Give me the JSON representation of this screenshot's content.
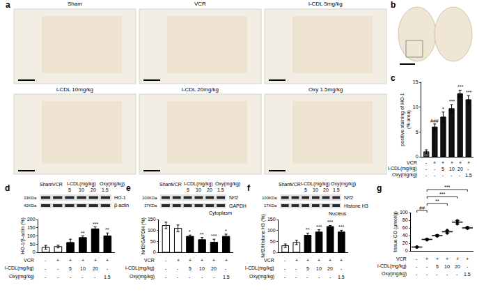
{
  "panel_labels": [
    "a",
    "b",
    "c",
    "d",
    "e",
    "f",
    "g"
  ],
  "micrographs": {
    "panel": "a",
    "titles": [
      "Sham",
      "VCR",
      "l-CDL 5mg/kg",
      "l-CDL 10mg/kg",
      "l-CDL 20mg/kg",
      "Oxy 1.5mg/kg"
    ]
  },
  "blots": [
    {
      "panel": "d",
      "header": [
        "Sham",
        "VCR",
        "l-CDL(mg/kg)",
        "Oxy(mg/kg)"
      ],
      "doses": [
        "5",
        "10",
        "20",
        "1.5"
      ],
      "rows": [
        {
          "size": "33KDa",
          "name": "HO-1"
        },
        {
          "size": "42KDa",
          "name": "β-actin"
        }
      ]
    },
    {
      "panel": "e",
      "header": [
        "Sham",
        "VCR",
        "l-CDL(mg/kg)",
        "Oxy(mg/kg)"
      ],
      "doses": [
        "5",
        "10",
        "20",
        "1.5"
      ],
      "rows": [
        {
          "size": "100KDa",
          "name": "Nrf2"
        },
        {
          "size": "37KDa",
          "name": "GAPDH"
        }
      ],
      "caption": "Cytoplasm"
    },
    {
      "panel": "f",
      "header": [
        "Sham",
        "VCR",
        "l-CDL(mg/kg)",
        "Oxy(mg/kg)"
      ],
      "doses": [
        "5",
        "10",
        "20",
        "1.5"
      ],
      "rows": [
        {
          "size": "100KDa",
          "name": "Nrf2"
        },
        {
          "size": "17KDa",
          "name": "Histone H3"
        }
      ],
      "caption": "Nucleus"
    }
  ],
  "chart_data": [
    {
      "panel": "c",
      "type": "bar",
      "categories": [
        null,
        null,
        null,
        null,
        null,
        null
      ],
      "values": [
        1,
        6,
        8,
        9.7,
        12.7,
        11.5
      ],
      "errors": [
        0.4,
        0.6,
        1,
        0.8,
        0.7,
        0.8
      ],
      "colors": [
        "#555555",
        "#111111",
        "#111111",
        "#111111",
        "#111111",
        "#111111"
      ],
      "ylabel": [
        "positive staining of HO-1",
        "(% area)"
      ],
      "ylim": [
        0,
        15
      ],
      "yticks": [
        0,
        5,
        10,
        15
      ],
      "tick_labels": "y",
      "significance": [
        null,
        "###",
        "*",
        "***",
        "***",
        "***"
      ],
      "conditions": [
        {
          "label": "VCR",
          "marks": [
            "-",
            "+",
            "+",
            "+",
            "+",
            "+"
          ]
        },
        {
          "label": "l-CDL(mg/kg)",
          "marks": [
            "-",
            "-",
            "5",
            "10",
            "20",
            "-"
          ]
        },
        {
          "label": "Oxy(mg/kg)",
          "marks": [
            "-",
            "-",
            "-",
            "-",
            "-",
            "1.5"
          ]
        }
      ]
    },
    {
      "panel": "d",
      "type": "bar",
      "categories": [
        null,
        null,
        null,
        null,
        null,
        null
      ],
      "values": [
        30,
        35,
        60,
        90,
        143,
        100
      ],
      "errors": [
        12,
        8,
        20,
        10,
        12,
        18
      ],
      "colors": [
        "#ffffff",
        "#ffffff",
        "#000000",
        "#000000",
        "#000000",
        "#000000"
      ],
      "ylabel": [
        "HO-1/β-actin (%)"
      ],
      "ylim": [
        0,
        200
      ],
      "yticks": [
        0,
        50,
        100,
        150,
        200
      ],
      "tick_labels": "y",
      "significance": [
        null,
        null,
        null,
        "**",
        "***",
        "**"
      ],
      "conditions": [
        {
          "label": "VCR",
          "marks": [
            "-",
            "+",
            "+",
            "+",
            "+",
            "+"
          ]
        },
        {
          "label": "l-CDL(mg/kg)",
          "marks": [
            "-",
            "-",
            "5",
            "10",
            "20",
            "-"
          ]
        },
        {
          "label": "Oxy(mg/kg)",
          "marks": [
            "-",
            "-",
            "-",
            "-",
            "-",
            "1.5"
          ]
        }
      ]
    },
    {
      "panel": "e",
      "type": "bar",
      "categories": [
        null,
        null,
        null,
        null,
        null,
        null
      ],
      "values": [
        123,
        110,
        73,
        58,
        46,
        73
      ],
      "errors": [
        15,
        15,
        6,
        10,
        14,
        10
      ],
      "colors": [
        "#ffffff",
        "#ffffff",
        "#000000",
        "#000000",
        "#000000",
        "#000000"
      ],
      "ylabel": [
        "Nrf2/GAPDH (%)"
      ],
      "ylim": [
        0,
        150
      ],
      "yticks": [
        0,
        50,
        100,
        150
      ],
      "tick_labels": "y",
      "significance": [
        null,
        null,
        "*",
        "**",
        "***",
        "*"
      ],
      "conditions": [
        {
          "label": "VCR",
          "marks": [
            "-",
            "+",
            "+",
            "+",
            "+",
            "+"
          ]
        },
        {
          "label": "l-CDL(mg/kg)",
          "marks": [
            "-",
            "-",
            "5",
            "10",
            "20",
            "-"
          ]
        },
        {
          "label": "Oxy(mg/kg)",
          "marks": [
            "-",
            "-",
            "-",
            "-",
            "-",
            "1.5"
          ]
        }
      ]
    },
    {
      "panel": "f",
      "type": "bar",
      "categories": [
        null,
        null,
        null,
        null,
        null,
        null
      ],
      "values": [
        30,
        45,
        78,
        93,
        118,
        93
      ],
      "errors": [
        8,
        10,
        10,
        10,
        5,
        8
      ],
      "colors": [
        "#ffffff",
        "#ffffff",
        "#000000",
        "#000000",
        "#000000",
        "#000000"
      ],
      "ylabel": [
        "Nrf2/Histone H3 (%)"
      ],
      "ylim": [
        0,
        150
      ],
      "yticks": [
        0,
        50,
        100,
        150
      ],
      "tick_labels": "y",
      "significance": [
        null,
        null,
        "**",
        "***",
        "***",
        "***"
      ],
      "conditions": [
        {
          "label": "VCR",
          "marks": [
            "-",
            "+",
            "+",
            "+",
            "+",
            "+"
          ]
        },
        {
          "label": "l-CDL(mg/kg)",
          "marks": [
            "-",
            "-",
            "5",
            "10",
            "20",
            "-"
          ]
        },
        {
          "label": "Oxy(mg/kg)",
          "marks": [
            "-",
            "-",
            "-",
            "-",
            "-",
            "1.5"
          ]
        }
      ]
    },
    {
      "panel": "g",
      "type": "scatter",
      "categories": [
        null,
        null,
        null,
        null,
        null,
        null
      ],
      "points": [
        [
          9,
          10,
          11
        ],
        [
          28,
          30,
          31
        ],
        [
          38,
          40,
          41
        ],
        [
          46,
          50,
          54
        ],
        [
          70,
          75,
          79
        ],
        [
          58,
          60,
          62
        ]
      ],
      "values": [
        10,
        30,
        40,
        50,
        75,
        60
      ],
      "errors": [
        0.8,
        1.5,
        2,
        3.5,
        4.5,
        2.5
      ],
      "color": "#000000",
      "marker": "circle",
      "ylabel": [
        "tissue CO (μmol/g)"
      ],
      "ylim": [
        0,
        100
      ],
      "yticks": [
        0,
        20,
        40,
        60,
        80,
        100
      ],
      "tick_labels": "y",
      "comparisons": [
        {
          "from": 0,
          "to": 1,
          "label": "##"
        },
        {
          "from": 1,
          "to": 3,
          "label": "**"
        },
        {
          "from": 1,
          "to": 4,
          "label": "***"
        },
        {
          "from": 1,
          "to": 5,
          "label": "***"
        }
      ],
      "conditions": [
        {
          "label": "VCR",
          "marks": [
            "-",
            "+",
            "+",
            "+",
            "+",
            "+"
          ]
        },
        {
          "label": "l-CDL(mg/kg)",
          "marks": [
            "-",
            "-",
            "5",
            "10",
            "20",
            "-"
          ]
        },
        {
          "label": "Oxy(mg/kg)",
          "marks": [
            "-",
            "-",
            "-",
            "-",
            "-",
            "1.5"
          ]
        }
      ]
    }
  ]
}
